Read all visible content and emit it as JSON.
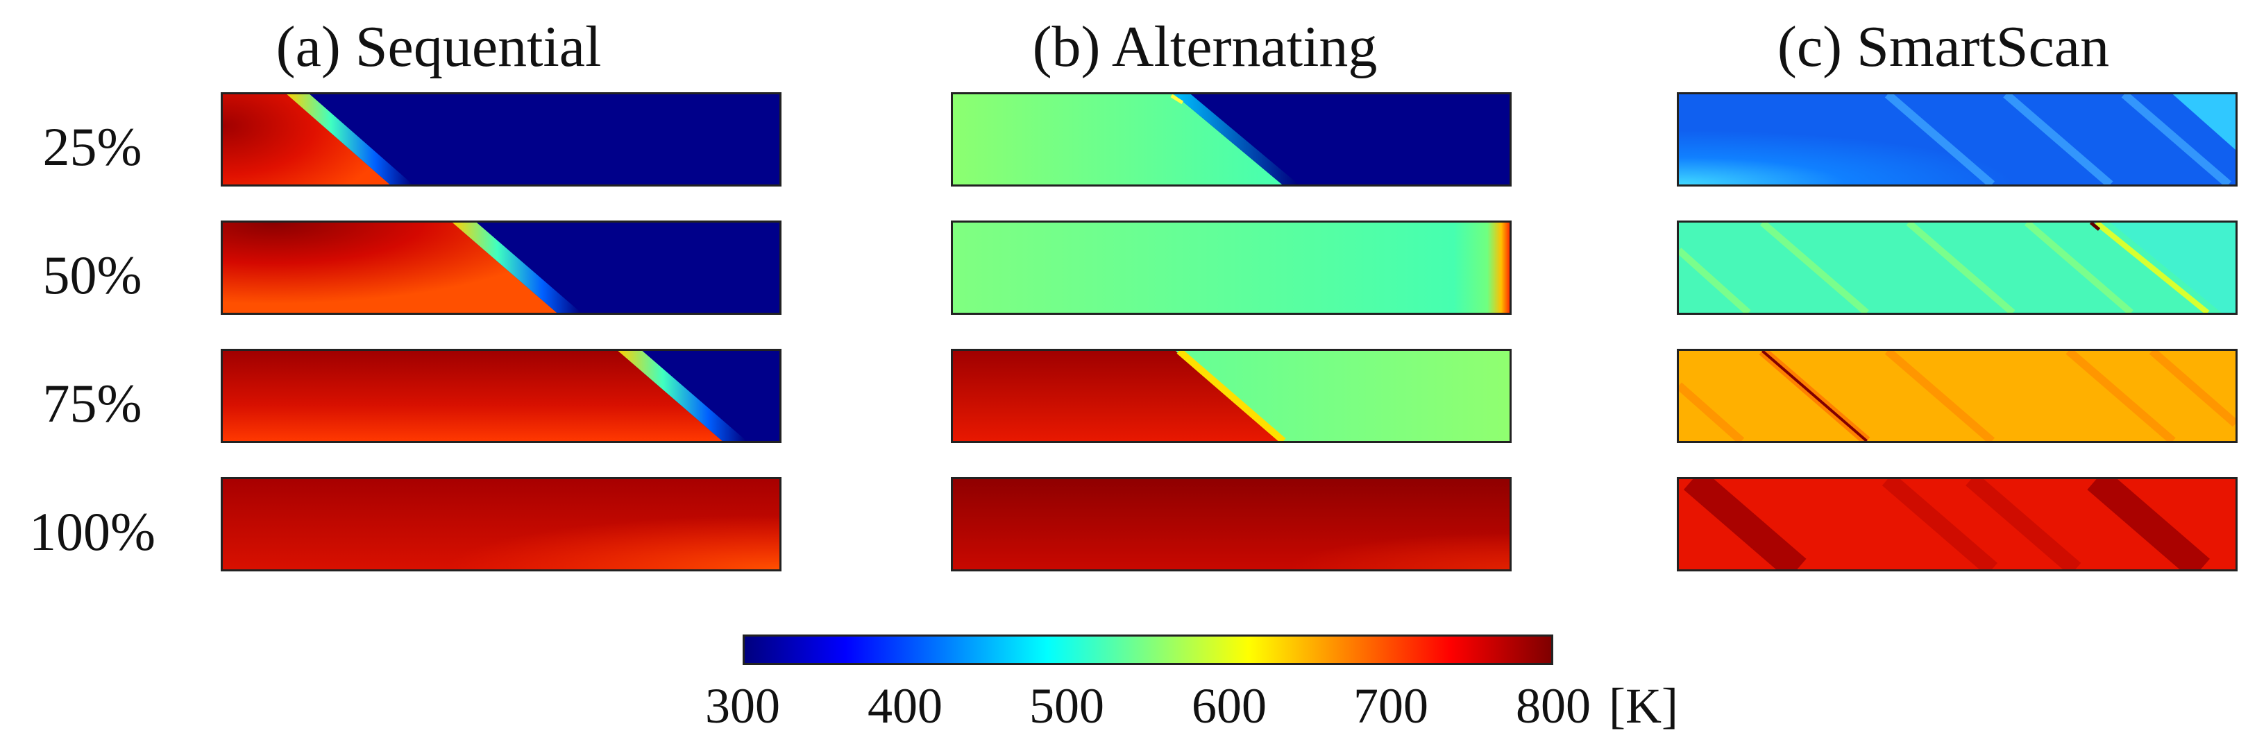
{
  "columns": [
    {
      "title": "(a) Sequential"
    },
    {
      "title": "(b) Alternating"
    },
    {
      "title": "(c) SmartScan"
    }
  ],
  "rows": [
    {
      "label": "25%"
    },
    {
      "label": "50%"
    },
    {
      "label": "75%"
    },
    {
      "label": "100%"
    }
  ],
  "colorbar": {
    "min": 300,
    "max": 800,
    "ticks": [
      "300",
      "400",
      "500",
      "600",
      "700",
      "800"
    ],
    "unit": "[K]",
    "colormap": "jet",
    "colors": [
      "#00007f",
      "#0000ff",
      "#007fff",
      "#00ffff",
      "#7fff7f",
      "#ffff00",
      "#ff7f00",
      "#ff0000",
      "#7f0000"
    ]
  }
}
